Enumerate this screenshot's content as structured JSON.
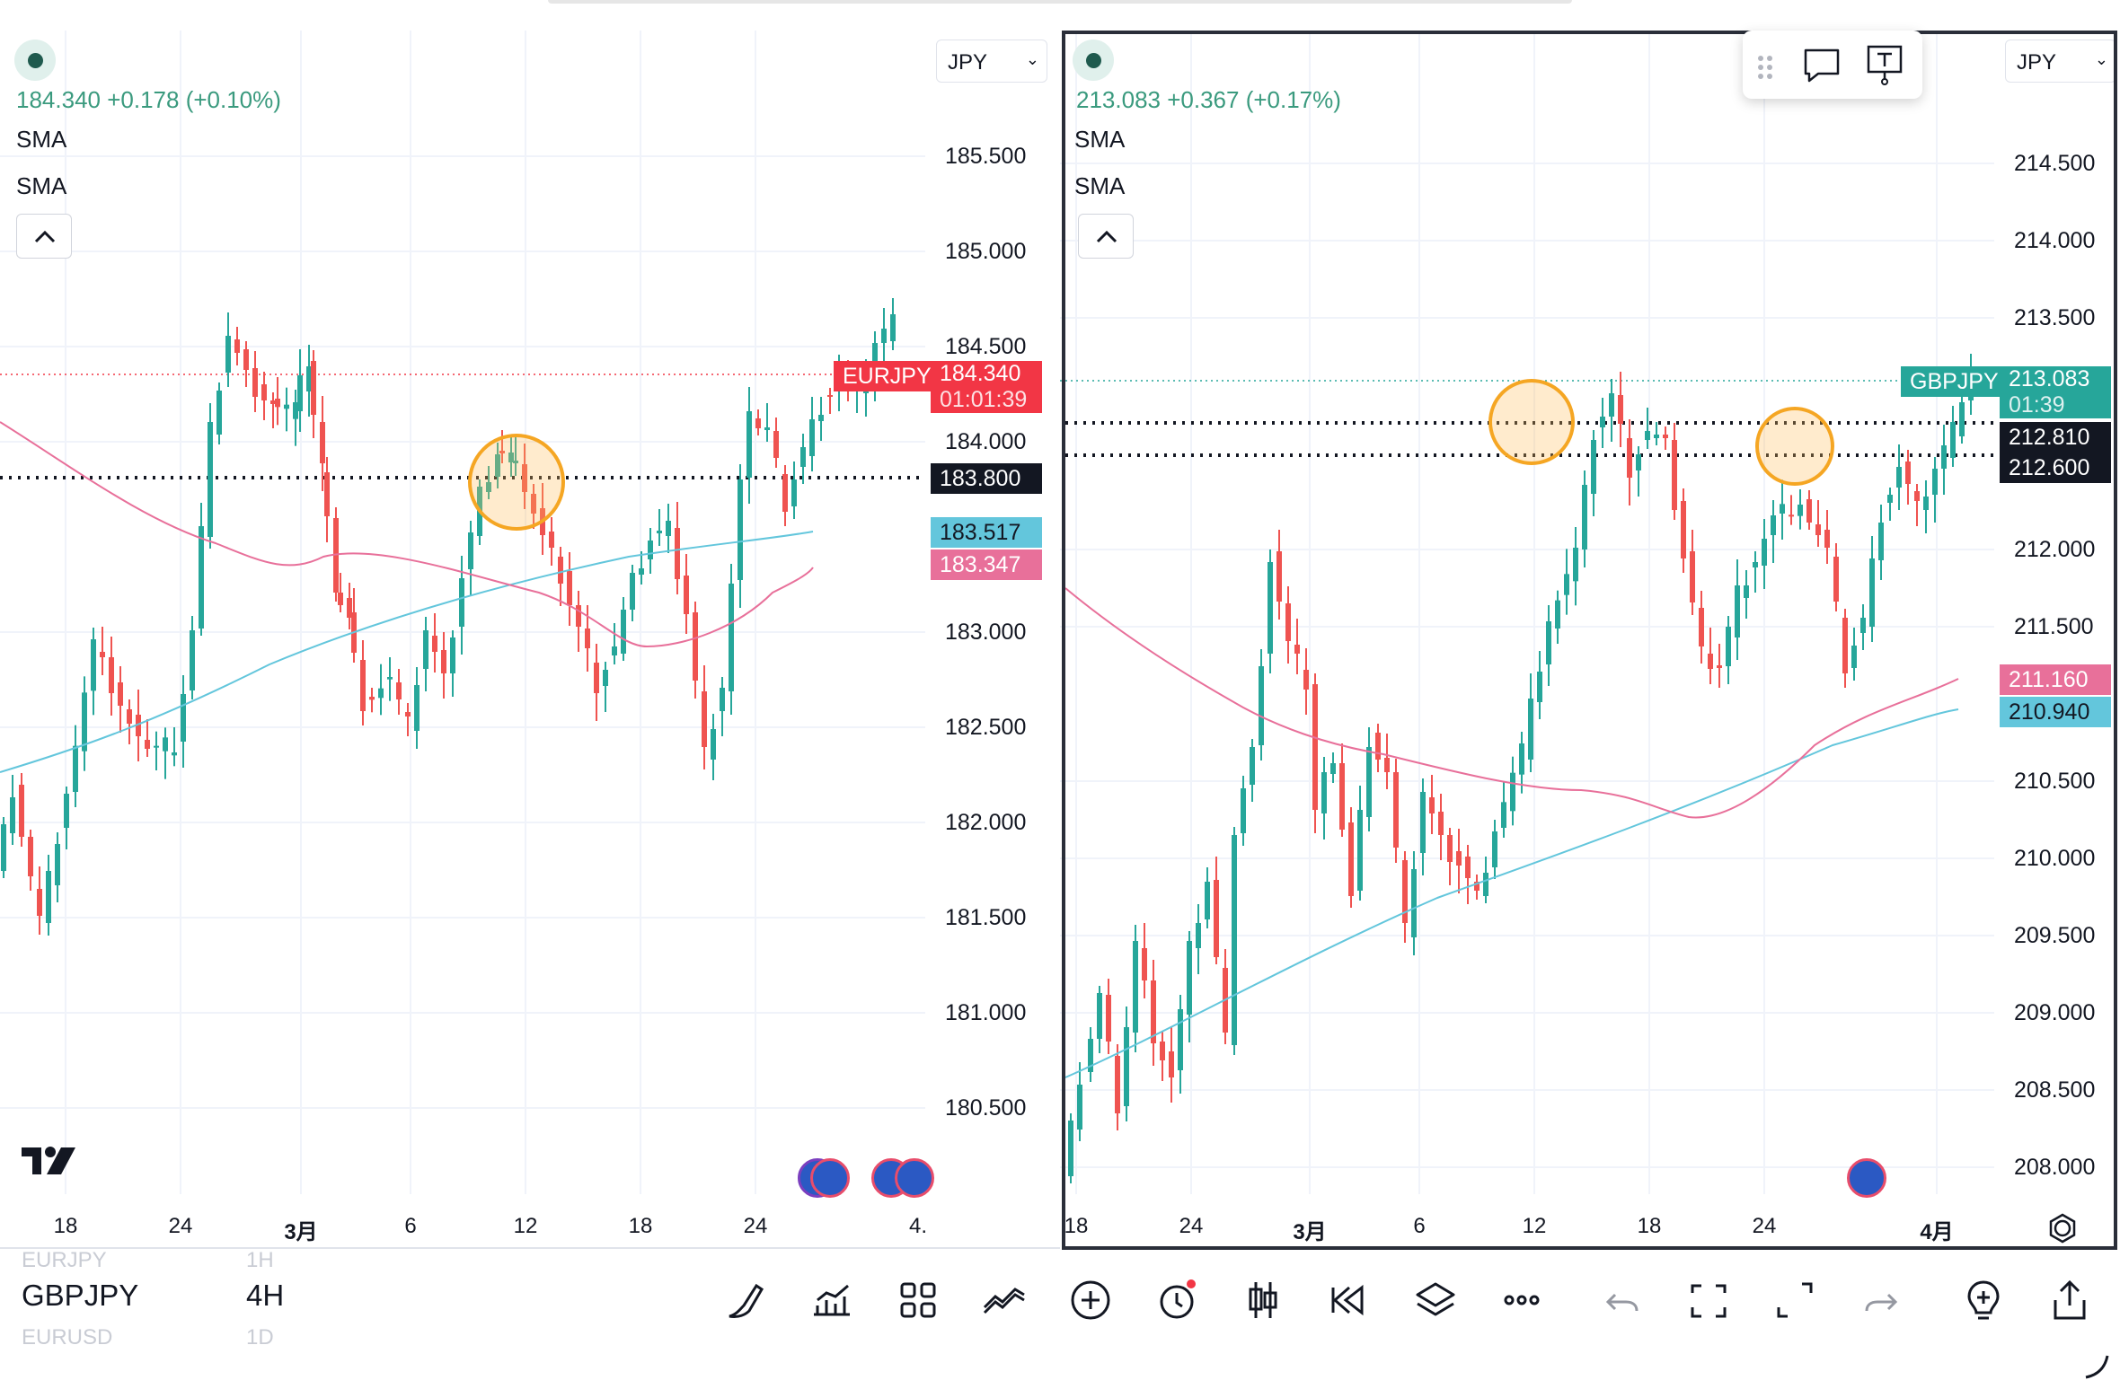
{
  "left_chart": {
    "legend_price": "184.340",
    "legend_change": "+0.178 (+0.10%)",
    "sma_labels": [
      "SMA",
      "SMA"
    ],
    "currency": "JPY",
    "price_axis": [
      "185.500",
      "185.000",
      "184.500",
      "184.000",
      "183.000",
      "182.500",
      "182.000",
      "181.500",
      "181.000",
      "180.500"
    ],
    "time_axis": [
      "18",
      "24",
      "3月",
      "6",
      "12",
      "18",
      "24",
      "4."
    ],
    "symbol_tag": "EURJPY",
    "last_price": "184.340",
    "countdown": "01:01:39",
    "hline_tag": "183.800",
    "sma_fast_value": "183.517",
    "sma_slow_value": "183.347",
    "colors": {
      "up": "#26a69a",
      "down": "#ef5350",
      "last_tag": "#f23645",
      "sma_fast": "#63c6dc",
      "sma_slow": "#e8709a"
    }
  },
  "right_chart": {
    "legend_price": "213.083",
    "legend_change": "+0.367 (+0.17%)",
    "sma_labels": [
      "SMA",
      "SMA"
    ],
    "currency": "JPY",
    "price_axis": [
      "214.500",
      "214.000",
      "213.500",
      "212.000",
      "211.500",
      "210.500",
      "210.000",
      "209.500",
      "209.000",
      "208.500",
      "208.000"
    ],
    "time_axis": [
      "18",
      "24",
      "3月",
      "6",
      "12",
      "18",
      "24",
      "4月"
    ],
    "symbol_tag": "GBPJPY",
    "last_price": "213.083",
    "countdown": "01:39",
    "hline_tags": [
      "212.810",
      "212.600"
    ],
    "sma_slow_value": "211.160",
    "sma_fast_value": "210.940",
    "colors": {
      "up": "#26a69a",
      "down": "#ef5350",
      "last_tag": "#26a69a",
      "sma_fast": "#63c6dc",
      "sma_slow": "#e8709a"
    }
  },
  "floating_toolbar": {
    "icons": [
      "drag-handle-icon",
      "comment-icon",
      "text-tool-icon"
    ]
  },
  "symbols": [
    {
      "name": "EURJPY",
      "tf": "1H",
      "state": "faded"
    },
    {
      "name": "GBPJPY",
      "tf": "4H",
      "state": "active"
    },
    {
      "name": "EURUSD",
      "tf": "1D",
      "state": "faded"
    }
  ],
  "toolbar": {
    "icons": [
      "brush-icon",
      "indicators-icon",
      "layout-icon",
      "compare-icon",
      "add-icon",
      "alert-icon",
      "chart-type-icon",
      "replay-icon",
      "layers-icon",
      "more-icon",
      "undo-icon",
      "screenshot-icon",
      "fullscreen-icon",
      "redo-icon",
      "lightbulb-icon",
      "share-icon"
    ]
  }
}
